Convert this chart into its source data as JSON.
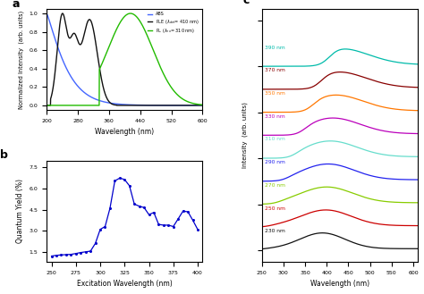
{
  "panel_a": {
    "xlabel": "Wavelength (nm)",
    "ylabel": "Normalized Intensity  (arb. units)",
    "xlim": [
      200,
      600
    ],
    "ylim": [
      -0.05,
      1.05
    ],
    "abs_color": "#4466FF",
    "ple_color": "#111111",
    "pl_color": "#22BB00",
    "xticks": [
      200,
      280,
      360,
      440,
      520,
      600
    ]
  },
  "panel_b": {
    "xlabel": "Excitation Wavelength (nm)",
    "ylabel": "Quantum Yield (%)",
    "xlim": [
      245,
      405
    ],
    "ylim": [
      0.8,
      8.0
    ],
    "color": "#0000CC",
    "x": [
      250,
      255,
      260,
      265,
      270,
      275,
      280,
      285,
      290,
      295,
      300,
      305,
      310,
      315,
      320,
      325,
      330,
      335,
      340,
      345,
      350,
      355,
      360,
      365,
      370,
      375,
      380,
      385,
      390,
      395,
      400
    ],
    "y": [
      1.2,
      1.25,
      1.28,
      1.3,
      1.32,
      1.38,
      1.45,
      1.5,
      1.55,
      2.1,
      3.1,
      3.3,
      4.6,
      6.55,
      6.75,
      6.65,
      6.2,
      4.9,
      4.75,
      4.65,
      4.15,
      4.3,
      3.45,
      3.4,
      3.4,
      3.3,
      3.85,
      4.4,
      4.35,
      3.75,
      3.1
    ],
    "yticks": [
      1.5,
      3.0,
      4.5,
      6.0,
      7.5
    ],
    "xticks": [
      250,
      275,
      300,
      325,
      350,
      375,
      400
    ]
  },
  "panel_c": {
    "xlabel": "Wavelength (nm)",
    "ylabel": "Intensity  (arb. units)",
    "xlim": [
      250,
      610
    ],
    "ylim": [
      -0.5,
      10.5
    ],
    "labels": [
      "390 nm",
      "370 nm",
      "350 nm",
      "330 nm",
      "310 nm",
      "290 nm",
      "270 nm",
      "250 nm",
      "230 nm"
    ],
    "colors": [
      "#00BBAA",
      "#880000",
      "#FF7700",
      "#BB00BB",
      "#66DDCC",
      "#2222EE",
      "#88CC00",
      "#CC0000",
      "#111111"
    ],
    "offsets": [
      8.0,
      7.0,
      6.0,
      5.0,
      4.0,
      3.0,
      2.0,
      1.0,
      0.0
    ],
    "xticks": [
      250,
      300,
      350,
      400,
      450,
      500,
      550,
      600
    ]
  }
}
